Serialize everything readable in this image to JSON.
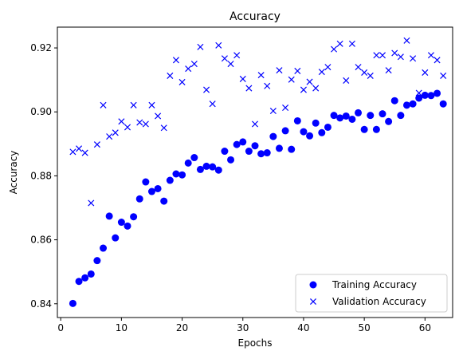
{
  "chart_data": {
    "type": "scatter",
    "title": "Accuracy",
    "xlabel": "Epochs",
    "ylabel": "Accuracy",
    "xlim": [
      -0.55,
      64.55
    ],
    "ylim": [
      0.8357,
      0.9265
    ],
    "x_ticks": [
      0,
      10,
      20,
      30,
      40,
      50,
      60
    ],
    "x_tick_labels": [
      "0",
      "10",
      "20",
      "30",
      "40",
      "50",
      "60"
    ],
    "y_ticks": [
      0.84,
      0.86,
      0.88,
      0.9,
      0.92
    ],
    "y_tick_labels": [
      "0.84",
      "0.86",
      "0.88",
      "0.90",
      "0.92"
    ],
    "legend": "lower-right",
    "grid": false,
    "series": [
      {
        "name": "Training Accuracy",
        "marker": "circle",
        "color": "#0000ff",
        "x": [
          2,
          3,
          4,
          5,
          6,
          7,
          8,
          9,
          10,
          11,
          12,
          13,
          14,
          15,
          16,
          17,
          18,
          19,
          20,
          21,
          22,
          23,
          24,
          25,
          26,
          27,
          28,
          29,
          30,
          31,
          32,
          33,
          34,
          35,
          36,
          37,
          38,
          39,
          40,
          41,
          42,
          43,
          44,
          45,
          46,
          47,
          48,
          49,
          50,
          51,
          52,
          53,
          54,
          55,
          56,
          57,
          58,
          59,
          60,
          61,
          62,
          63
        ],
        "y": [
          0.8401,
          0.847,
          0.8481,
          0.8493,
          0.8535,
          0.8574,
          0.8674,
          0.8606,
          0.8655,
          0.8643,
          0.8672,
          0.8728,
          0.8781,
          0.8751,
          0.876,
          0.8721,
          0.8786,
          0.8806,
          0.8803,
          0.884,
          0.8857,
          0.882,
          0.883,
          0.8828,
          0.8818,
          0.8877,
          0.885,
          0.8898,
          0.8906,
          0.8877,
          0.8894,
          0.8869,
          0.8872,
          0.8923,
          0.8886,
          0.8941,
          0.8883,
          0.8972,
          0.8938,
          0.8925,
          0.8965,
          0.8935,
          0.8952,
          0.8989,
          0.8981,
          0.8987,
          0.8977,
          0.8997,
          0.8945,
          0.8989,
          0.8945,
          0.8994,
          0.897,
          0.9035,
          0.8989,
          0.9021,
          0.9025,
          0.9043,
          0.9052,
          0.9051,
          0.9058,
          0.9025
        ]
      },
      {
        "name": "Validation Accuracy",
        "marker": "x",
        "color": "#0000ff",
        "x": [
          2,
          3,
          4,
          5,
          6,
          7,
          8,
          9,
          10,
          11,
          12,
          13,
          14,
          15,
          16,
          17,
          18,
          19,
          20,
          21,
          22,
          23,
          24,
          25,
          26,
          27,
          28,
          29,
          30,
          31,
          32,
          33,
          34,
          35,
          36,
          37,
          38,
          39,
          40,
          41,
          42,
          43,
          44,
          45,
          46,
          47,
          48,
          49,
          50,
          51,
          52,
          53,
          54,
          55,
          56,
          57,
          58,
          59,
          60,
          61,
          62,
          63
        ],
        "y": [
          0.8875,
          0.8885,
          0.8872,
          0.8715,
          0.8898,
          0.9021,
          0.8923,
          0.8935,
          0.897,
          0.8952,
          0.9021,
          0.8967,
          0.8962,
          0.9021,
          0.8987,
          0.895,
          0.9113,
          0.9162,
          0.9093,
          0.9135,
          0.915,
          0.9203,
          0.9069,
          0.9025,
          0.9208,
          0.9167,
          0.915,
          0.9177,
          0.9103,
          0.9074,
          0.8962,
          0.9115,
          0.9081,
          0.9003,
          0.913,
          0.9013,
          0.9101,
          0.9128,
          0.9069,
          0.9094,
          0.9074,
          0.9125,
          0.914,
          0.9196,
          0.9213,
          0.9098,
          0.9213,
          0.914,
          0.9123,
          0.9113,
          0.9177,
          0.9177,
          0.913,
          0.9184,
          0.9172,
          0.9223,
          0.9167,
          0.9059,
          0.9123,
          0.9177,
          0.9162,
          0.9113
        ]
      }
    ]
  }
}
